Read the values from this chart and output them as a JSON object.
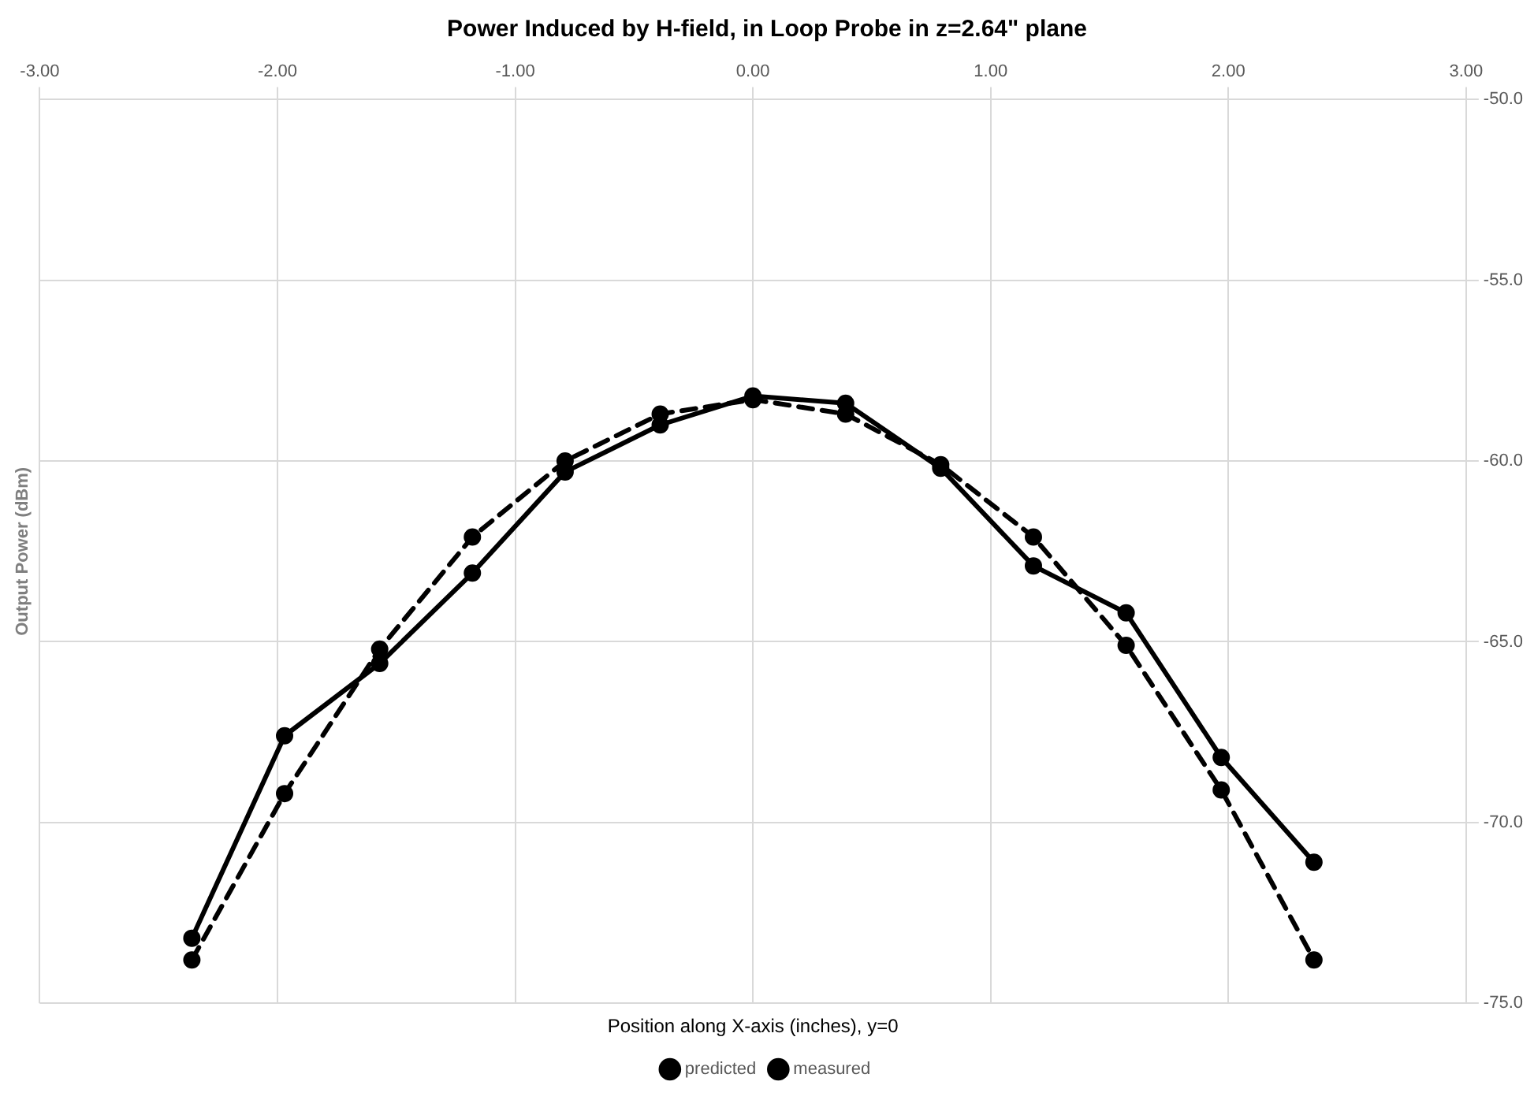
{
  "chart_data": {
    "type": "line",
    "title": "Power Induced by H-field, in Loop Probe in z=2.64\" plane",
    "xlabel": "Position along X-axis (inches), y=0",
    "ylabel": "Output Power (dBm)",
    "x": [
      -2.36,
      -1.97,
      -1.57,
      -1.18,
      -0.79,
      -0.39,
      0,
      0.39,
      0.79,
      1.18,
      1.57,
      1.97,
      2.36
    ],
    "series": [
      {
        "name": "predicted",
        "color": "#000000",
        "line_style": "dashed",
        "values": [
          -73.8,
          -69.2,
          -65.2,
          -62.1,
          -60.0,
          -58.7,
          -58.3,
          -58.7,
          -60.1,
          -62.1,
          -65.1,
          -69.1,
          -73.8
        ]
      },
      {
        "name": "measured",
        "color": "#000000",
        "line_style": "solid",
        "values": [
          -73.2,
          -67.6,
          -65.6,
          -63.1,
          -60.3,
          -59.0,
          -58.2,
          -58.4,
          -60.2,
          -62.9,
          -64.2,
          -68.2,
          -71.1
        ]
      }
    ],
    "xlim": [
      -3,
      3
    ],
    "ylim": [
      -75,
      -50
    ],
    "xticks": [
      {
        "value": -3,
        "label": "-3.00"
      },
      {
        "value": -2,
        "label": "-2.00"
      },
      {
        "value": -1,
        "label": "-1.00"
      },
      {
        "value": 0,
        "label": "0.00"
      },
      {
        "value": 1,
        "label": "1.00"
      },
      {
        "value": 2,
        "label": "2.00"
      },
      {
        "value": 3,
        "label": "3.00"
      }
    ],
    "yticks": [
      {
        "value": -50,
        "label": "-50.0"
      },
      {
        "value": -55,
        "label": "-55.0"
      },
      {
        "value": -60,
        "label": "-60.0"
      },
      {
        "value": -65,
        "label": "-65.0"
      },
      {
        "value": -70,
        "label": "-70.0"
      },
      {
        "value": -75,
        "label": "-75.0"
      }
    ],
    "grid": true,
    "legend": "bottom",
    "marker": "circle"
  }
}
